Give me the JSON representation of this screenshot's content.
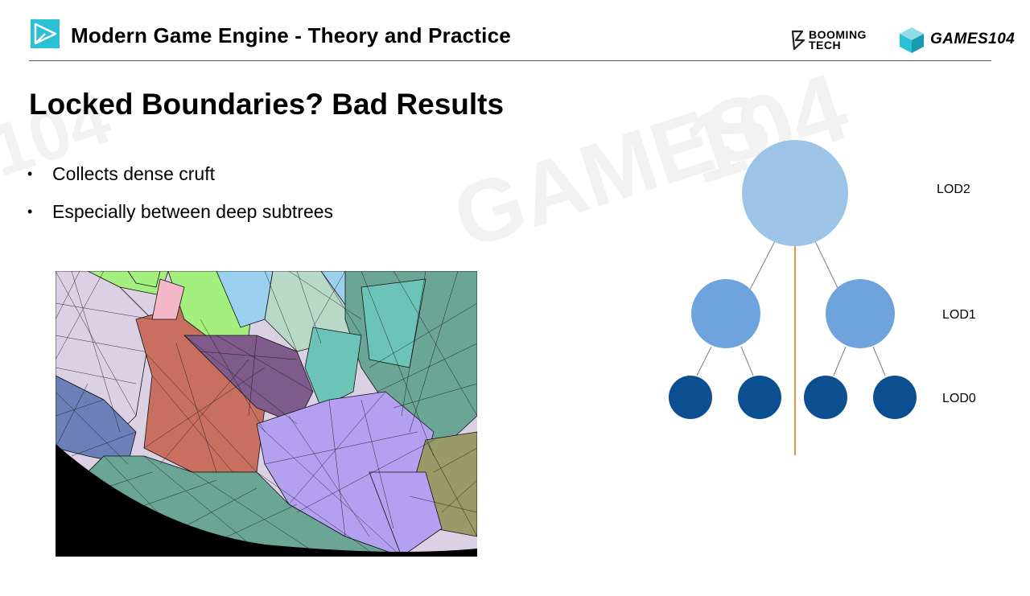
{
  "header": {
    "title": "Modern Game Engine - Theory and Practice",
    "brand_booming": "BOOMING TECH",
    "brand_booming_line1": "BOOMING",
    "brand_booming_line2": "TECH",
    "brand_games": "GAMES104",
    "accent_color": "#2bc0d6"
  },
  "slide": {
    "title": "Locked Boundaries? Bad Results",
    "bullets": [
      {
        "text": "Collects dense cruft"
      },
      {
        "text": "Especially between deep subtrees"
      }
    ]
  },
  "lod_tree": {
    "levels": [
      {
        "label": "LOD2",
        "color": "#9dc3e6"
      },
      {
        "label": "LOD1",
        "color": "#6fa3dc"
      },
      {
        "label": "LOD0",
        "color": "#0b4f91"
      }
    ],
    "divider_color": "#e8943a",
    "edge_color": "#7f7f7f"
  },
  "mesh_image": {
    "colors": [
      "#dcd0e4",
      "#6b7fb8",
      "#c86f60",
      "#a3f07f",
      "#7e5b8a",
      "#9cd0f0",
      "#b8d8c8",
      "#6cc4b8",
      "#6aa595",
      "#b4a0f0",
      "#9a9a68",
      "#000000"
    ]
  }
}
